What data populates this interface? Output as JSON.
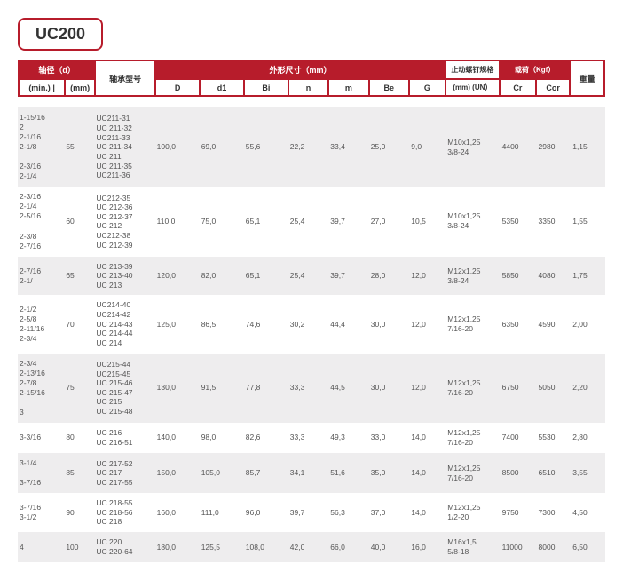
{
  "title": "UC200",
  "header": {
    "shaft_dia": "轴径（d）",
    "min": "(min.)",
    "mm": "(mm)",
    "model": "轴承型号",
    "outline": "外形尺寸（mm）",
    "D": "D",
    "d1": "d1",
    "Bi": "Bi",
    "n": "n",
    "m": "m",
    "Be": "Be",
    "G": "G",
    "screw": "止动螺钉规格",
    "screw_sub": "(mm)\n(UN）",
    "load": "载荷（Kgf）",
    "Cr": "Cr",
    "Cor": "Cor",
    "weight": "重量"
  },
  "rows": [
    {
      "gray": true,
      "min": "1-15/16\n2\n2-1/16\n2-1/8\n\n2-3/16\n2-1/4",
      "mm": "55",
      "models": "UC211-31\nUC 211-32\nUC211-33\nUC 211-34\nUC 211\nUC 211-35\nUC211-36",
      "D": "100,0",
      "d1": "69,0",
      "Bi": "55,6",
      "n": "22,2",
      "m": "33,4",
      "Be": "25,0",
      "G": "9,0",
      "un": "M10x1,25\n3/8-24",
      "Cr": "4400",
      "Cor": "2980",
      "wt": "1,15"
    },
    {
      "gray": false,
      "min": "2-3/16\n2-1/4\n2-5/16\n\n2-3/8\n2-7/16",
      "mm": "60",
      "models": "UC212-35\nUC 212-36\nUC 212-37\nUC 212\nUC212-38\nUC 212-39",
      "D": "110,0",
      "d1": "75,0",
      "Bi": "65,1",
      "n": "25,4",
      "m": "39,7",
      "Be": "27,0",
      "G": "10,5",
      "un": "M10x1,25\n3/8-24",
      "Cr": "5350",
      "Cor": "3350",
      "wt": "1,55"
    },
    {
      "gray": true,
      "min": "2-7/16\n2-1/",
      "mm": "65",
      "models": "UC 213-39\nUC 213-40\nUC 213",
      "D": "120,0",
      "d1": "82,0",
      "Bi": "65,1",
      "n": "25,4",
      "m": "39,7",
      "Be": "28,0",
      "G": "12,0",
      "un": "M12x1,25\n3/8-24",
      "Cr": "5850",
      "Cor": "4080",
      "wt": "1,75"
    },
    {
      "gray": false,
      "min": "2-1/2\n2-5/8\n2-11/16\n2-3/4",
      "mm": "70",
      "models": "UC214-40\nUC214-42\nUC 214-43\nUC 214-44\nUC 214",
      "D": "125,0",
      "d1": "86,5",
      "Bi": "74,6",
      "n": "30,2",
      "m": "44,4",
      "Be": "30,0",
      "G": "12,0",
      "un": "M12x1,25\n7/16-20",
      "Cr": "6350",
      "Cor": "4590",
      "wt": "2,00"
    },
    {
      "gray": true,
      "min": "2-3/4\n2-13/16\n2-7/8\n2-15/16\n\n3",
      "mm": "75",
      "models": "UC215-44\nUC215-45\nUC 215-46\nUC 215-47\nUC 215\nUC 215-48",
      "D": "130,0",
      "d1": "91,5",
      "Bi": "77,8",
      "n": "33,3",
      "m": "44,5",
      "Be": "30,0",
      "G": "12,0",
      "un": "M12x1,25\n7/16-20",
      "Cr": "6750",
      "Cor": "5050",
      "wt": "2,20"
    },
    {
      "gray": false,
      "min": "3-3/16",
      "mm": "80",
      "models": "UC 216\nUC 216-51",
      "D": "140,0",
      "d1": "98,0",
      "Bi": "82,6",
      "n": "33,3",
      "m": "49,3",
      "Be": "33,0",
      "G": "14,0",
      "un": "M12x1,25\n7/16-20",
      "Cr": "7400",
      "Cor": "5530",
      "wt": "2,80"
    },
    {
      "gray": true,
      "min": "3-1/4\n\n3-7/16",
      "mm": "85",
      "models": "UC 217-52\nUC 217\nUC 217-55",
      "D": "150,0",
      "d1": "105,0",
      "Bi": "85,7",
      "n": "34,1",
      "m": "51,6",
      "Be": "35,0",
      "G": "14,0",
      "un": "M12x1,25\n7/16-20",
      "Cr": "8500",
      "Cor": "6510",
      "wt": "3,55"
    },
    {
      "gray": false,
      "min": "3-7/16\n3-1/2",
      "mm": "90",
      "models": "UC 218-55\nUC 218-56\nUC 218",
      "D": "160,0",
      "d1": "111,0",
      "Bi": "96,0",
      "n": "39,7",
      "m": "56,3",
      "Be": "37,0",
      "G": "14,0",
      "un": "M12x1,25\n1/2-20",
      "Cr": "9750",
      "Cor": "7300",
      "wt": "4,50"
    },
    {
      "gray": true,
      "min": "4",
      "mm": "100",
      "models": "UC 220\nUC 220-64",
      "D": "180,0",
      "d1": "125,5",
      "Bi": "108,0",
      "n": "42,0",
      "m": "66,0",
      "Be": "40,0",
      "G": "16,0",
      "un": "M16x1,5\n5/8-18",
      "Cr": "11000",
      "Cor": "8000",
      "wt": "6,50"
    }
  ]
}
